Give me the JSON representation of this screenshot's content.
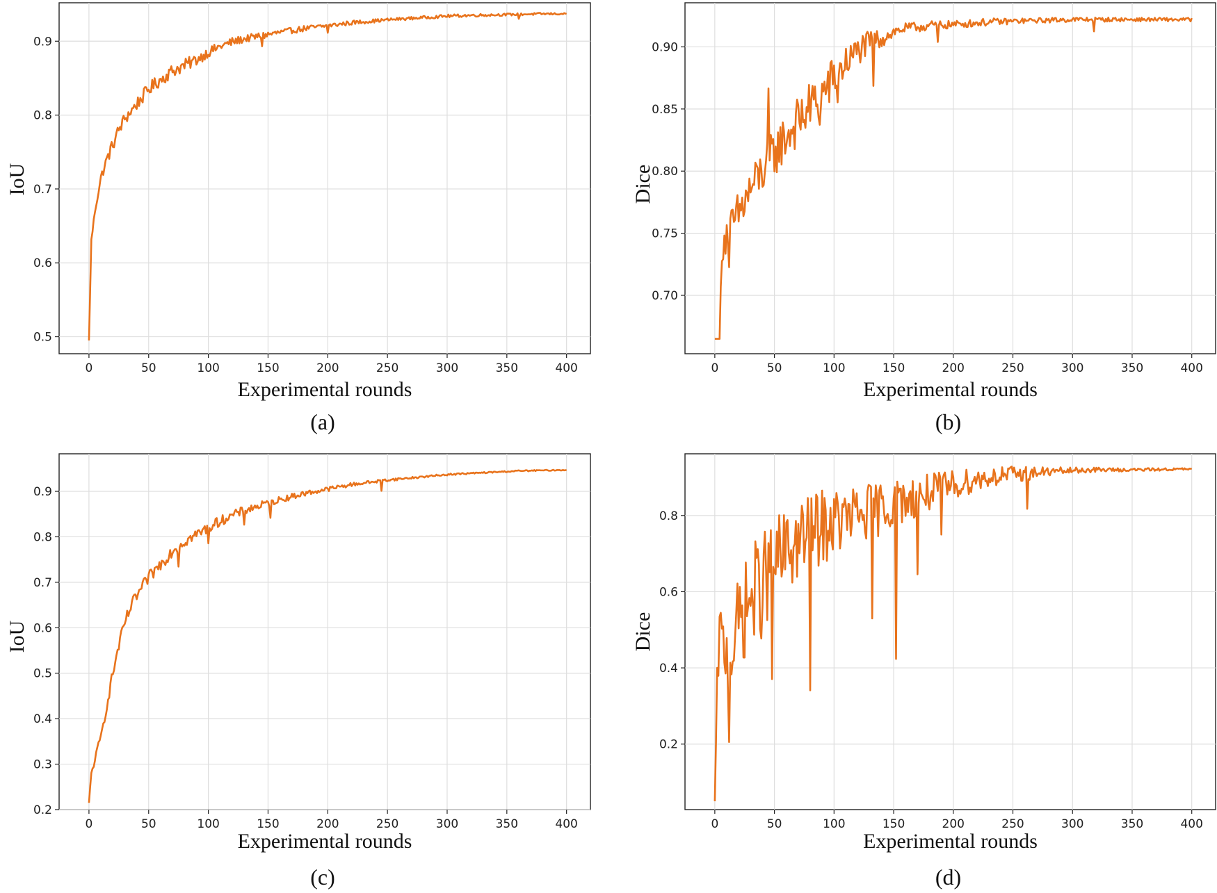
{
  "colors": {
    "series": "#E8731C",
    "grid": "#dedede",
    "axis": "#222222"
  },
  "chart_data": [
    {
      "panel": "a",
      "type": "line",
      "caption": "(a)",
      "xlabel": "Experimental rounds",
      "ylabel": "IoU",
      "xlim": [
        -25,
        420
      ],
      "ylim": [
        0.477,
        0.952
      ],
      "xticks": [
        0,
        50,
        100,
        150,
        200,
        250,
        300,
        350,
        400
      ],
      "yticks": [
        0.5,
        0.6,
        0.7,
        0.8,
        0.9
      ],
      "ytick_labels": [
        "0.5",
        "0.6",
        "0.7",
        "0.8",
        "0.9"
      ],
      "grid": true,
      "series": [
        {
          "name": "IoU",
          "x": [
            0,
            2,
            5,
            10,
            15,
            20,
            25,
            30,
            40,
            50,
            60,
            70,
            80,
            90,
            100,
            110,
            120,
            130,
            140,
            150,
            160,
            180,
            200,
            220,
            250,
            280,
            300,
            320,
            350,
            380,
            400
          ],
          "y": [
            0.495,
            0.63,
            0.67,
            0.715,
            0.74,
            0.76,
            0.78,
            0.795,
            0.815,
            0.835,
            0.848,
            0.86,
            0.867,
            0.875,
            0.885,
            0.893,
            0.899,
            0.903,
            0.906,
            0.909,
            0.912,
            0.917,
            0.921,
            0.925,
            0.929,
            0.932,
            0.934,
            0.935,
            0.936,
            0.937,
            0.937
          ],
          "noise": [
            0,
            0.004,
            0.004,
            0.006,
            0.008,
            0.009,
            0.009,
            0.009,
            0.009,
            0.009,
            0.009,
            0.009,
            0.009,
            0.008,
            0.007,
            0.006,
            0.006,
            0.005,
            0.005,
            0.005,
            0.004,
            0.004,
            0.003,
            0.003,
            0.002,
            0.002,
            0.002,
            0.002,
            0.0015,
            0.0015,
            0.001
          ],
          "spikes": [
            [
              145,
              -0.012
            ],
            [
              200,
              -0.008
            ],
            [
              360,
              -0.006
            ]
          ]
        }
      ]
    },
    {
      "panel": "b",
      "type": "line",
      "caption": "(b)",
      "xlabel": "Experimental rounds",
      "ylabel": "Dice",
      "xlim": [
        -25,
        420
      ],
      "ylim": [
        0.653,
        0.9355
      ],
      "xticks": [
        0,
        50,
        100,
        150,
        200,
        250,
        300,
        350,
        400
      ],
      "yticks": [
        0.7,
        0.75,
        0.8,
        0.85,
        0.9
      ],
      "ytick_labels": [
        "0.70",
        "0.75",
        "0.80",
        "0.85",
        "0.90"
      ],
      "grid": true,
      "series": [
        {
          "name": "Dice",
          "x": [
            0,
            4,
            6,
            10,
            15,
            20,
            30,
            40,
            50,
            60,
            70,
            80,
            90,
            100,
            110,
            120,
            130,
            140,
            150,
            160,
            180,
            200,
            230,
            260,
            300,
            350,
            400
          ],
          "y": [
            0.665,
            0.665,
            0.74,
            0.75,
            0.755,
            0.765,
            0.785,
            0.8,
            0.815,
            0.828,
            0.84,
            0.852,
            0.862,
            0.875,
            0.887,
            0.897,
            0.903,
            0.907,
            0.912,
            0.915,
            0.917,
            0.918,
            0.92,
            0.921,
            0.922,
            0.922,
            0.922
          ],
          "noise": [
            0,
            0,
            0.014,
            0.016,
            0.018,
            0.02,
            0.02,
            0.02,
            0.02,
            0.02,
            0.02,
            0.02,
            0.02,
            0.018,
            0.014,
            0.012,
            0.01,
            0.008,
            0.005,
            0.004,
            0.004,
            0.003,
            0.003,
            0.002,
            0.002,
            0.0015,
            0.0015
          ],
          "spikes": [
            [
              12,
              -0.04
            ],
            [
              45,
              0.04
            ],
            [
              88,
              -0.03
            ],
            [
              103,
              -0.025
            ],
            [
              133,
              -0.03
            ],
            [
              187,
              -0.015
            ],
            [
              318,
              -0.008
            ]
          ]
        }
      ]
    },
    {
      "panel": "c",
      "type": "line",
      "caption": "(c)",
      "xlabel": "Experimental rounds",
      "ylabel": "IoU",
      "xlim": [
        -25,
        420
      ],
      "ylim": [
        0.2,
        0.9826
      ],
      "xticks": [
        0,
        50,
        100,
        150,
        200,
        250,
        300,
        350,
        400
      ],
      "yticks": [
        0.2,
        0.3,
        0.4,
        0.5,
        0.6,
        0.7,
        0.8,
        0.9
      ],
      "ytick_labels": [
        "0.2",
        "0.3",
        "0.4",
        "0.5",
        "0.6",
        "0.7",
        "0.8",
        "0.9"
      ],
      "grid": true,
      "series": [
        {
          "name": "IoU",
          "x": [
            0,
            2,
            5,
            10,
            15,
            20,
            25,
            30,
            35,
            40,
            45,
            50,
            60,
            70,
            80,
            90,
            100,
            110,
            120,
            130,
            140,
            150,
            160,
            180,
            200,
            220,
            250,
            280,
            300,
            330,
            360,
            400
          ],
          "y": [
            0.215,
            0.28,
            0.31,
            0.36,
            0.43,
            0.5,
            0.56,
            0.61,
            0.645,
            0.67,
            0.69,
            0.71,
            0.74,
            0.77,
            0.79,
            0.805,
            0.82,
            0.835,
            0.847,
            0.858,
            0.866,
            0.874,
            0.882,
            0.895,
            0.905,
            0.915,
            0.925,
            0.932,
            0.937,
            0.941,
            0.945,
            0.947
          ],
          "noise": [
            0,
            0.006,
            0.008,
            0.01,
            0.012,
            0.012,
            0.012,
            0.014,
            0.014,
            0.014,
            0.014,
            0.014,
            0.014,
            0.014,
            0.013,
            0.012,
            0.012,
            0.011,
            0.01,
            0.01,
            0.009,
            0.008,
            0.007,
            0.006,
            0.005,
            0.004,
            0.003,
            0.002,
            0.002,
            0.0015,
            0.0015,
            0.001
          ],
          "spikes": [
            [
              75,
              -0.04
            ],
            [
              100,
              -0.03
            ],
            [
              130,
              -0.025
            ],
            [
              152,
              -0.04
            ],
            [
              245,
              -0.02
            ]
          ]
        }
      ]
    },
    {
      "panel": "d",
      "type": "line",
      "caption": "(d)",
      "xlabel": "Experimental rounds",
      "ylabel": "Dice",
      "xlim": [
        -25,
        420
      ],
      "ylim": [
        0.028,
        0.962
      ],
      "xticks": [
        0,
        50,
        100,
        150,
        200,
        250,
        300,
        350,
        400
      ],
      "yticks": [
        0.2,
        0.4,
        0.6,
        0.8
      ],
      "ytick_labels": [
        "0.2",
        "0.4",
        "0.6",
        "0.8"
      ],
      "grid": true,
      "series": [
        {
          "name": "Dice",
          "x": [
            0,
            2,
            4,
            8,
            12,
            20,
            30,
            40,
            50,
            60,
            70,
            80,
            90,
            100,
            120,
            140,
            160,
            180,
            200,
            220,
            240,
            260,
            280,
            300,
            320,
            350,
            400
          ],
          "y": [
            0.05,
            0.35,
            0.5,
            0.45,
            0.42,
            0.52,
            0.58,
            0.62,
            0.67,
            0.7,
            0.73,
            0.75,
            0.77,
            0.78,
            0.8,
            0.82,
            0.84,
            0.86,
            0.88,
            0.895,
            0.905,
            0.91,
            0.915,
            0.918,
            0.92,
            0.92,
            0.922
          ],
          "noise": [
            0,
            0.05,
            0.07,
            0.09,
            0.1,
            0.12,
            0.14,
            0.14,
            0.13,
            0.12,
            0.11,
            0.1,
            0.1,
            0.09,
            0.08,
            0.07,
            0.06,
            0.05,
            0.04,
            0.03,
            0.025,
            0.02,
            0.012,
            0.008,
            0.006,
            0.004,
            0.003
          ],
          "spikes": [
            [
              12,
              -0.18
            ],
            [
              48,
              -0.3
            ],
            [
              80,
              -0.32
            ],
            [
              132,
              -0.3
            ],
            [
              152,
              -0.35
            ],
            [
              170,
              -0.2
            ],
            [
              190,
              -0.12
            ],
            [
              262,
              -0.08
            ]
          ]
        }
      ]
    }
  ]
}
